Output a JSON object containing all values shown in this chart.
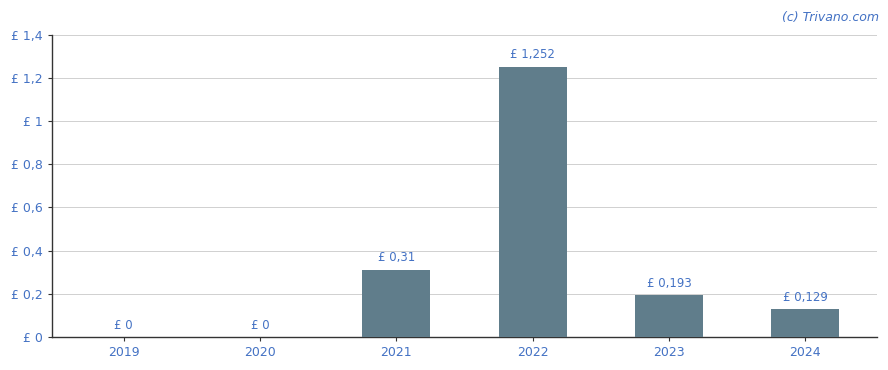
{
  "categories": [
    "2019",
    "2020",
    "2021",
    "2022",
    "2023",
    "2024"
  ],
  "values": [
    0,
    0,
    0.31,
    1.252,
    0.193,
    0.129
  ],
  "bar_labels": [
    "£ 0",
    "£ 0",
    "£ 0,31",
    "£ 1,252",
    "£ 0,193",
    "£ 0,129"
  ],
  "bar_color": "#607d8b",
  "background_color": "#ffffff",
  "plot_bg_color": "#ffffff",
  "ylim": [
    0,
    1.4
  ],
  "yticks": [
    0,
    0.2,
    0.4,
    0.6,
    0.8,
    1.0,
    1.2,
    1.4
  ],
  "ytick_labels": [
    "£ 0",
    "£ 0,2",
    "£ 0,4",
    "£ 0,6",
    "£ 0,8",
    "£ 1",
    "£ 1,2",
    "£ 1,4"
  ],
  "watermark": "(c) Trivano.com",
  "watermark_color": "#4472c4",
  "label_color": "#4472c4",
  "tick_color": "#4472c4",
  "grid_color": "#d0d0d0",
  "spine_color": "#333333",
  "bar_width": 0.5,
  "label_fontsize": 8.5,
  "tick_fontsize": 9,
  "watermark_fontsize": 9
}
